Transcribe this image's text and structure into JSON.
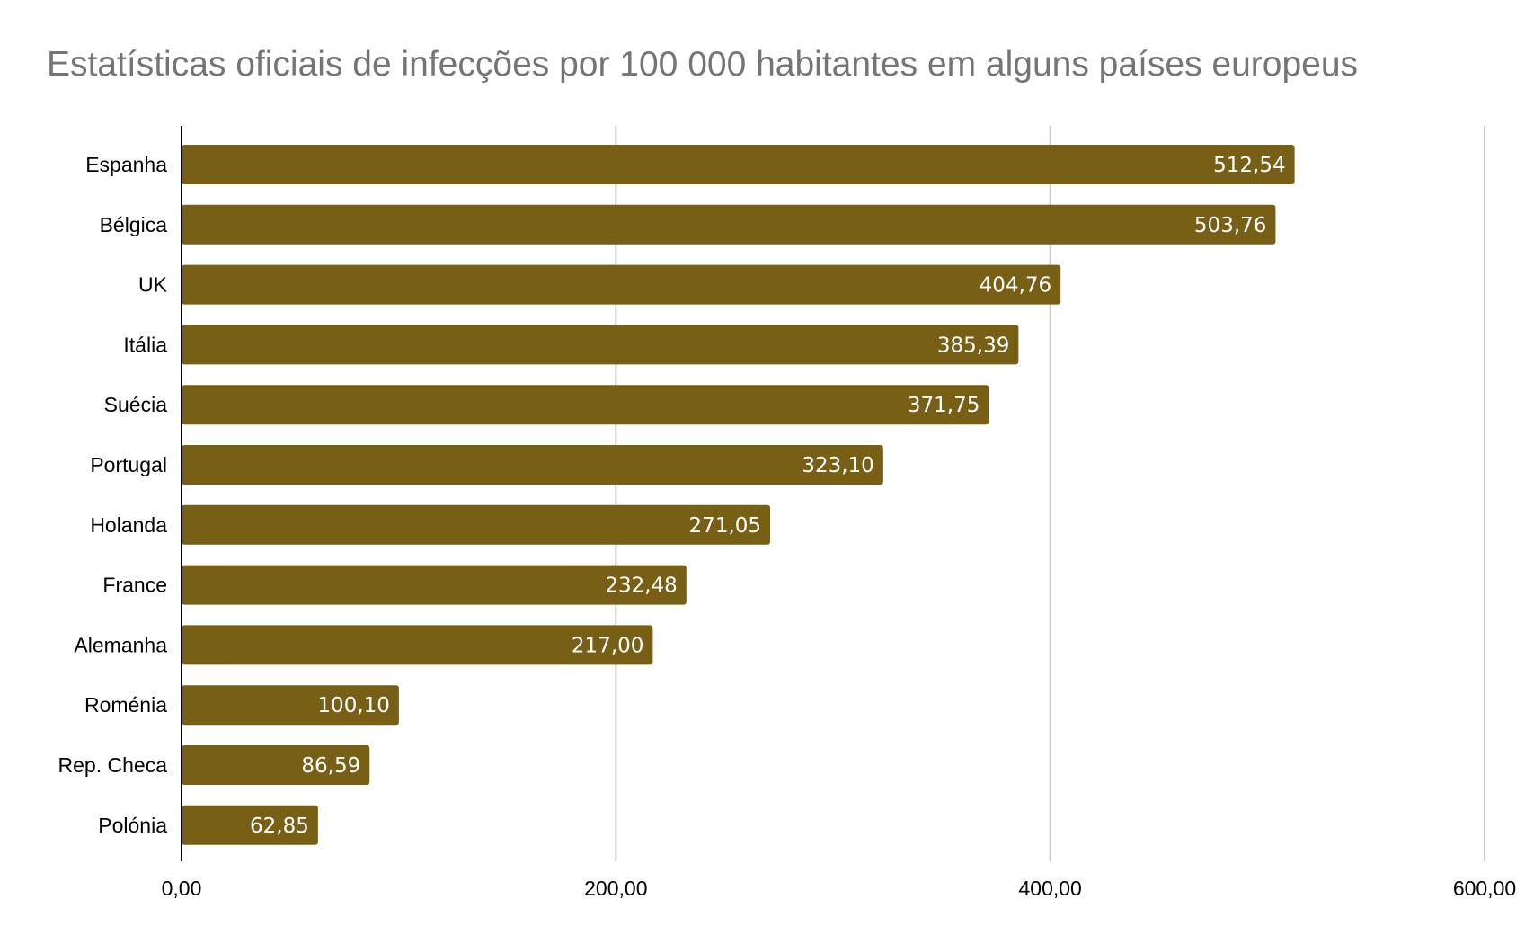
{
  "chart_data": {
    "type": "bar",
    "orientation": "horizontal",
    "title": "Estatísticas oficiais de infecções por 100 000 habitantes em alguns países europeus",
    "xlabel": "",
    "ylabel": "",
    "categories": [
      "Espanha",
      "Bélgica",
      "UK",
      "Itália",
      "Suécia",
      "Portugal",
      "Holanda",
      "France",
      "Alemanha",
      "Roménia",
      "Rep. Checa",
      "Polónia"
    ],
    "values": [
      512.54,
      503.76,
      404.76,
      385.39,
      371.75,
      323.1,
      271.05,
      232.48,
      217.0,
      100.1,
      86.59,
      62.85
    ],
    "value_labels": [
      "512,54",
      "503,76",
      "404,76",
      "385,39",
      "371,75",
      "323,10",
      "271,05",
      "232,48",
      "217,00",
      "100,10",
      "86,59",
      "62,85"
    ],
    "xlim": [
      0,
      600
    ],
    "ticks": [
      0,
      200,
      400,
      600
    ],
    "tick_labels": [
      "0,00",
      "200,00",
      "400,00",
      "600,00"
    ],
    "grid": true,
    "legend": "none",
    "colors": {
      "bar": "#775f16",
      "grid": "#cccccc",
      "axis": "#000000",
      "title": "#757575",
      "data_label": "#ffffff"
    }
  }
}
